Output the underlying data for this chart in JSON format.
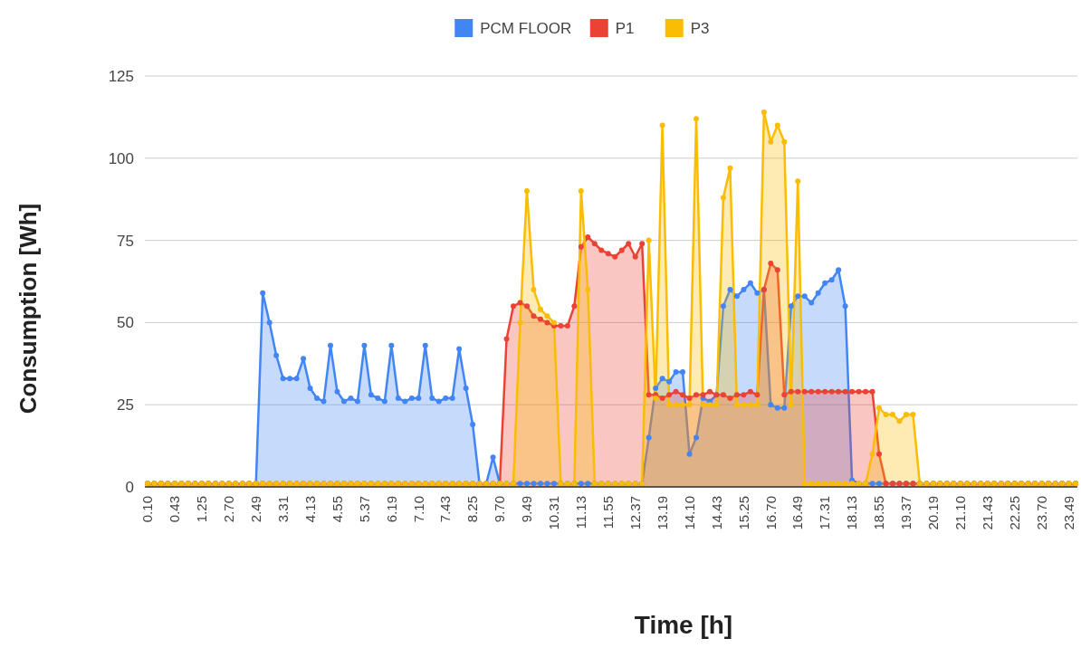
{
  "chart_data": {
    "type": "area",
    "xlabel": "Time [h]",
    "ylabel": "Consumption [Wh]",
    "categories": [
      "0.10",
      null,
      null,
      null,
      "0.43",
      null,
      null,
      null,
      "1.25",
      null,
      null,
      null,
      "2.70",
      null,
      null,
      null,
      "2.49",
      null,
      null,
      null,
      "3.31",
      null,
      null,
      null,
      "4.13",
      null,
      null,
      null,
      "4.55",
      null,
      null,
      null,
      "5.37",
      null,
      null,
      null,
      "6.19",
      null,
      null,
      null,
      "7.10",
      null,
      null,
      null,
      "7.43",
      null,
      null,
      null,
      "8.25",
      null,
      null,
      null,
      "9.70",
      null,
      null,
      null,
      "9.49",
      null,
      null,
      null,
      "10.31",
      null,
      null,
      null,
      "11.13",
      null,
      null,
      null,
      "11.55",
      null,
      null,
      null,
      "12.37",
      null,
      null,
      null,
      "13.19",
      null,
      null,
      null,
      "14.10",
      null,
      null,
      null,
      "14.43",
      null,
      null,
      null,
      "15.25",
      null,
      null,
      null,
      "16.70",
      null,
      null,
      null,
      "16.49",
      null,
      null,
      null,
      "17.31",
      null,
      null,
      null,
      "18.13",
      null,
      null,
      null,
      "18.55",
      null,
      null,
      null,
      "19.37",
      null,
      null,
      null,
      "20.19",
      null,
      null,
      null,
      "21.10",
      null,
      null,
      null,
      "21.43",
      null,
      null,
      null,
      "22.25",
      null,
      null,
      null,
      "23.70",
      null,
      null,
      null,
      "23.49",
      null
    ],
    "series": [
      {
        "name": "PCM FLOOR",
        "color": "#4285f4",
        "values": [
          1,
          1,
          1,
          1,
          1,
          1,
          1,
          1,
          1,
          1,
          1,
          1,
          1,
          1,
          1,
          1,
          1,
          59,
          50,
          40,
          33,
          33,
          33,
          39,
          30,
          27,
          26,
          43,
          29,
          26,
          27,
          26,
          43,
          28,
          27,
          26,
          43,
          27,
          26,
          27,
          27,
          43,
          27,
          26,
          27,
          27,
          42,
          30,
          19,
          1,
          1,
          9,
          1,
          1,
          1,
          1,
          1,
          1,
          1,
          1,
          1,
          1,
          1,
          1,
          1,
          1,
          1,
          1,
          1,
          1,
          1,
          1,
          1,
          1,
          15,
          30,
          33,
          32,
          35,
          35,
          10,
          15,
          27,
          26,
          28,
          55,
          60,
          58,
          60,
          62,
          59,
          60,
          25,
          24,
          24,
          55,
          58,
          58,
          56,
          59,
          62,
          63,
          66,
          55,
          2,
          1,
          1,
          1,
          1,
          1,
          1,
          1,
          1,
          1,
          1,
          1,
          1,
          1,
          1,
          1,
          1,
          1,
          1,
          1,
          1,
          1,
          1,
          1,
          1,
          1,
          1,
          1,
          1,
          1,
          1,
          1,
          1,
          1
        ]
      },
      {
        "name": "P1",
        "color": "#ea4335",
        "values": [
          1,
          1,
          1,
          1,
          1,
          1,
          1,
          1,
          1,
          1,
          1,
          1,
          1,
          1,
          1,
          1,
          1,
          1,
          1,
          1,
          1,
          1,
          1,
          1,
          1,
          1,
          1,
          1,
          1,
          1,
          1,
          1,
          1,
          1,
          1,
          1,
          1,
          1,
          1,
          1,
          1,
          1,
          1,
          1,
          1,
          1,
          1,
          1,
          1,
          1,
          1,
          1,
          1,
          45,
          55,
          56,
          55,
          52,
          51,
          50,
          49,
          49,
          49,
          55,
          73,
          76,
          74,
          72,
          71,
          70,
          72,
          74,
          70,
          74,
          28,
          28,
          27,
          28,
          29,
          28,
          27,
          28,
          28,
          29,
          28,
          28,
          27,
          28,
          28,
          29,
          28,
          60,
          68,
          66,
          28,
          29,
          29,
          29,
          29,
          29,
          29,
          29,
          29,
          29,
          29,
          29,
          29,
          29,
          10,
          1,
          1,
          1,
          1,
          1,
          1,
          1,
          1,
          1,
          1,
          1,
          1,
          1,
          1,
          1,
          1,
          1,
          1,
          1,
          1,
          1,
          1,
          1,
          1,
          1,
          1,
          1,
          1,
          1
        ]
      },
      {
        "name": "P3",
        "color": "#fbbc04",
        "values": [
          1,
          1,
          1,
          1,
          1,
          1,
          1,
          1,
          1,
          1,
          1,
          1,
          1,
          1,
          1,
          1,
          1,
          1,
          1,
          1,
          1,
          1,
          1,
          1,
          1,
          1,
          1,
          1,
          1,
          1,
          1,
          1,
          1,
          1,
          1,
          1,
          1,
          1,
          1,
          1,
          1,
          1,
          1,
          1,
          1,
          1,
          1,
          1,
          1,
          1,
          1,
          1,
          1,
          1,
          1,
          50,
          90,
          60,
          54,
          52,
          50,
          1,
          1,
          1,
          90,
          60,
          1,
          1,
          1,
          1,
          1,
          1,
          1,
          1,
          75,
          27,
          110,
          25,
          25,
          25,
          25,
          112,
          25,
          25,
          25,
          88,
          97,
          25,
          25,
          25,
          25,
          114,
          105,
          110,
          105,
          25,
          93,
          1,
          1,
          1,
          1,
          1,
          1,
          1,
          1,
          1,
          1,
          10,
          24,
          22,
          22,
          20,
          22,
          22,
          1,
          1,
          1,
          1,
          1,
          1,
          1,
          1,
          1,
          1,
          1,
          1,
          1,
          1,
          1,
          1,
          1,
          1,
          1,
          1,
          1,
          1,
          1,
          1
        ]
      }
    ],
    "ylim": [
      0,
      125
    ],
    "yticks": [
      0,
      25,
      50,
      75,
      100,
      125
    ],
    "grid": "y",
    "legend": "top",
    "marker": "circle"
  }
}
